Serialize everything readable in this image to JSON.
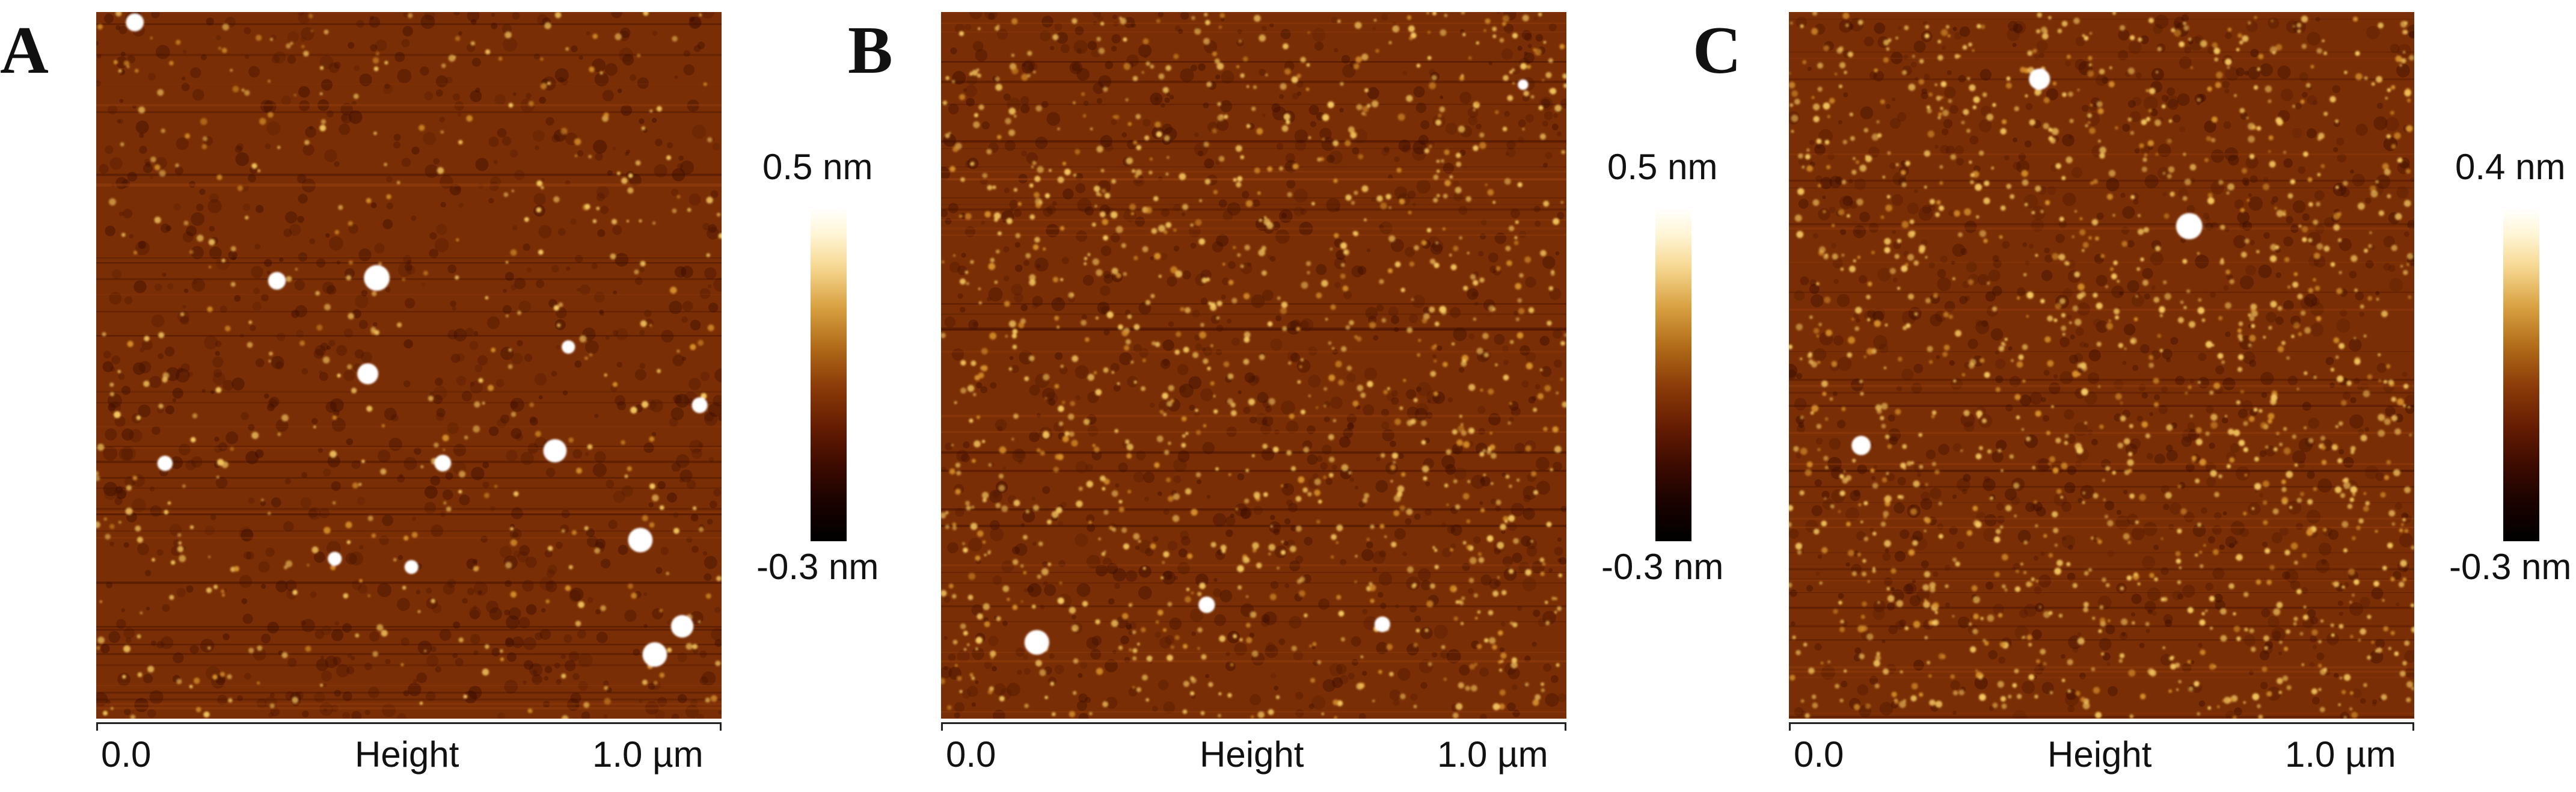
{
  "panels": [
    {
      "letter": "A",
      "scale_max": "0.5 nm",
      "scale_min": "-0.3 nm",
      "axis_start": "0.0",
      "axis_label": "Height",
      "axis_end": "1.0 µm"
    },
    {
      "letter": "B",
      "scale_max": "0.5 nm",
      "scale_min": "-0.3 nm",
      "axis_start": "0.0",
      "axis_label": "Height",
      "axis_end": "1.0 µm"
    },
    {
      "letter": "C",
      "scale_max": "0.4 nm",
      "scale_min": "-0.3 nm",
      "axis_start": "0.0",
      "axis_label": "Height",
      "axis_end": "1.0 µm"
    }
  ],
  "colors": {
    "base": "#7a2e05",
    "dark": "#3a0c00",
    "bright": "#f5c860",
    "highlight": "#ffffff"
  }
}
